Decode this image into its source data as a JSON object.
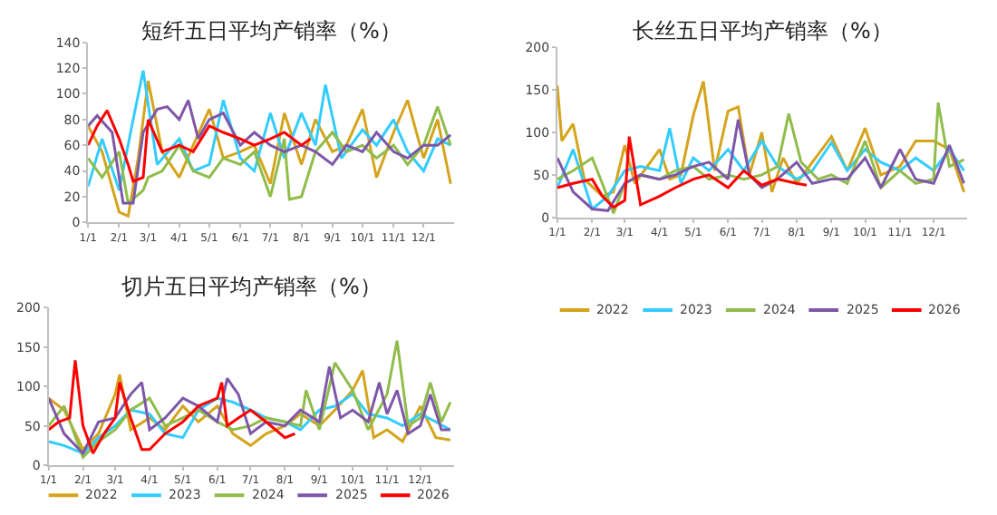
{
  "chart_data": [
    {
      "type": "line",
      "title": "短纤五日平均产销率（%）",
      "xlim": [
        "--01-01",
        "--12-31"
      ],
      "xticks": [
        {
          "value": "--01-01",
          "label": "1/1"
        },
        {
          "value": "--02-01",
          "label": "2/1"
        },
        {
          "value": "--03-01",
          "label": "3/1"
        },
        {
          "value": "--04-01",
          "label": "4/1"
        },
        {
          "value": "--05-01",
          "label": "5/1"
        },
        {
          "value": "--06-01",
          "label": "6/1"
        },
        {
          "value": "--07-01",
          "label": "7/1"
        },
        {
          "value": "--08-01",
          "label": "8/1"
        },
        {
          "value": "--09-01",
          "label": "9/1"
        },
        {
          "value": "--10-01",
          "label": "10/1"
        },
        {
          "value": "--11-01",
          "label": "11/1"
        },
        {
          "value": "--12-01",
          "label": "12/1"
        }
      ],
      "ylim": [
        0,
        140
      ],
      "yticks": [
        0,
        20,
        40,
        60,
        80,
        100,
        120,
        140
      ],
      "legend": false,
      "series": [
        {
          "color": "#d4a41c",
          "x": [
            "--01-01",
            "--01-15",
            "--02-01",
            "--02-10",
            "--02-20",
            "--03-01",
            "--03-15",
            "--04-01",
            "--04-15",
            "--05-01",
            "--05-15",
            "--06-01",
            "--06-15",
            "--07-01",
            "--07-15",
            "--08-01",
            "--08-15",
            "--09-01",
            "--09-15",
            "--10-01",
            "--10-15",
            "--11-01",
            "--11-15",
            "--12-01",
            "--12-15",
            "--12-28"
          ],
          "values": [
            75,
            55,
            8,
            5,
            50,
            110,
            55,
            35,
            60,
            88,
            50,
            55,
            60,
            30,
            85,
            45,
            80,
            55,
            60,
            88,
            35,
            70,
            95,
            50,
            80,
            30
          ]
        },
        {
          "color": "#33ccff",
          "x": [
            "--01-01",
            "--01-15",
            "--02-01",
            "--02-15",
            "--02-25",
            "--03-10",
            "--04-01",
            "--04-15",
            "--05-01",
            "--05-15",
            "--06-01",
            "--06-15",
            "--07-01",
            "--07-15",
            "--08-01",
            "--08-15",
            "--08-25",
            "--09-10",
            "--10-01",
            "--10-15",
            "--11-01",
            "--11-15",
            "--12-01",
            "--12-15",
            "--12-28"
          ],
          "values": [
            28,
            65,
            25,
            80,
            118,
            45,
            65,
            40,
            45,
            95,
            50,
            40,
            85,
            50,
            85,
            60,
            107,
            50,
            72,
            60,
            80,
            55,
            40,
            65,
            60
          ]
        },
        {
          "color": "#8fbc4a",
          "x": [
            "--01-01",
            "--01-15",
            "--02-01",
            "--02-10",
            "--02-25",
            "--03-01",
            "--03-15",
            "--04-01",
            "--04-15",
            "--05-01",
            "--05-15",
            "--06-01",
            "--06-15",
            "--07-01",
            "--07-15",
            "--07-20",
            "--08-01",
            "--08-15",
            "--09-01",
            "--09-15",
            "--10-01",
            "--10-15",
            "--11-01",
            "--11-15",
            "--12-01",
            "--12-15",
            "--12-28"
          ],
          "values": [
            50,
            35,
            55,
            15,
            25,
            35,
            40,
            60,
            40,
            35,
            50,
            45,
            55,
            20,
            65,
            18,
            20,
            55,
            70,
            55,
            60,
            50,
            60,
            45,
            60,
            90,
            60
          ]
        },
        {
          "color": "#7e57a8",
          "x": [
            "--01-01",
            "--01-10",
            "--01-25",
            "--02-05",
            "--02-15",
            "--02-25",
            "--03-10",
            "--03-20",
            "--04-01",
            "--04-10",
            "--04-20",
            "--05-01",
            "--05-15",
            "--06-01",
            "--06-15",
            "--07-01",
            "--07-15",
            "--08-01",
            "--08-15",
            "--09-01",
            "--09-15",
            "--10-01",
            "--10-15",
            "--11-01",
            "--11-15",
            "--12-01",
            "--12-15",
            "--12-28"
          ],
          "values": [
            75,
            83,
            70,
            15,
            15,
            70,
            88,
            90,
            80,
            95,
            65,
            80,
            85,
            60,
            70,
            60,
            55,
            60,
            55,
            45,
            60,
            55,
            70,
            55,
            50,
            60,
            60,
            68
          ]
        },
        {
          "color": "#ff0000",
          "x": [
            "--01-01",
            "--01-10",
            "--01-20",
            "--02-01",
            "--02-10",
            "--02-15",
            "--02-25",
            "--03-01",
            "--03-15",
            "--04-01",
            "--04-15",
            "--05-01",
            "--05-15",
            "--06-01",
            "--06-15",
            "--07-01",
            "--07-15",
            "--08-01",
            "--08-10"
          ],
          "values": [
            60,
            75,
            87,
            65,
            45,
            32,
            35,
            80,
            55,
            60,
            55,
            75,
            70,
            65,
            60,
            65,
            70,
            60,
            65
          ]
        }
      ]
    },
    {
      "type": "line",
      "title": "长丝五日平均产销率（%）",
      "xlim": [
        "--01-01",
        "--12-31"
      ],
      "xticks": [
        {
          "value": "--01-01",
          "label": "1/1"
        },
        {
          "value": "--02-01",
          "label": "2/1"
        },
        {
          "value": "--03-01",
          "label": "3/1"
        },
        {
          "value": "--04-01",
          "label": "4/1"
        },
        {
          "value": "--05-01",
          "label": "5/1"
        },
        {
          "value": "--06-01",
          "label": "6/1"
        },
        {
          "value": "--07-01",
          "label": "7/1"
        },
        {
          "value": "--08-01",
          "label": "8/1"
        },
        {
          "value": "--09-01",
          "label": "9/1"
        },
        {
          "value": "--10-01",
          "label": "10/1"
        },
        {
          "value": "--11-01",
          "label": "11/1"
        },
        {
          "value": "--12-01",
          "label": "12/1"
        }
      ],
      "ylim": [
        0,
        200
      ],
      "yticks": [
        0,
        50,
        100,
        150,
        200
      ],
      "legend": "bottom",
      "series": [
        {
          "name": "2022",
          "color": "#d4a41c",
          "x": [
            "--01-01",
            "--01-05",
            "--01-15",
            "--01-25",
            "--02-10",
            "--02-20",
            "--03-01",
            "--03-10",
            "--04-01",
            "--04-10",
            "--04-20",
            "--05-01",
            "--05-10",
            "--05-20",
            "--06-01",
            "--06-10",
            "--06-20",
            "--07-01",
            "--07-10",
            "--07-20",
            "--08-01",
            "--08-15",
            "--09-01",
            "--09-15",
            "--10-01",
            "--10-15",
            "--11-01",
            "--11-15",
            "--12-01",
            "--12-15",
            "--12-28"
          ],
          "values": [
            155,
            90,
            110,
            45,
            25,
            30,
            85,
            40,
            80,
            45,
            50,
            120,
            160,
            55,
            125,
            130,
            50,
            100,
            30,
            70,
            40,
            65,
            95,
            55,
            105,
            50,
            60,
            90,
            90,
            80,
            30
          ]
        },
        {
          "name": "2023",
          "color": "#33ccff",
          "x": [
            "--01-01",
            "--01-15",
            "--02-01",
            "--02-15",
            "--03-01",
            "--03-15",
            "--04-01",
            "--04-10",
            "--04-20",
            "--05-01",
            "--05-15",
            "--06-01",
            "--06-15",
            "--07-01",
            "--07-15",
            "--08-01",
            "--08-15",
            "--09-01",
            "--09-15",
            "--10-01",
            "--10-15",
            "--11-01",
            "--11-15",
            "--12-01",
            "--12-15",
            "--12-28"
          ],
          "values": [
            35,
            80,
            10,
            25,
            55,
            60,
            55,
            105,
            40,
            70,
            55,
            80,
            55,
            90,
            60,
            45,
            55,
            88,
            55,
            80,
            65,
            55,
            70,
            55,
            80,
            55
          ]
        },
        {
          "name": "2024",
          "color": "#8fbc4a",
          "x": [
            "--01-01",
            "--01-15",
            "--02-01",
            "--02-10",
            "--02-20",
            "--03-01",
            "--03-15",
            "--04-01",
            "--04-15",
            "--05-01",
            "--05-15",
            "--06-01",
            "--06-15",
            "--07-01",
            "--07-15",
            "--07-25",
            "--08-05",
            "--08-20",
            "--09-01",
            "--09-15",
            "--10-01",
            "--10-15",
            "--11-01",
            "--11-15",
            "--12-01",
            "--12-05",
            "--12-15",
            "--12-28"
          ],
          "values": [
            45,
            55,
            70,
            40,
            5,
            40,
            50,
            45,
            55,
            60,
            45,
            50,
            45,
            50,
            60,
            122,
            65,
            45,
            50,
            40,
            90,
            35,
            55,
            40,
            45,
            135,
            60,
            68
          ]
        },
        {
          "name": "2025",
          "color": "#7e57a8",
          "x": [
            "--01-01",
            "--01-15",
            "--02-01",
            "--02-15",
            "--03-01",
            "--03-15",
            "--04-01",
            "--04-15",
            "--05-01",
            "--05-15",
            "--06-01",
            "--06-10",
            "--06-20",
            "--07-01",
            "--07-15",
            "--08-01",
            "--08-15",
            "--09-01",
            "--09-15",
            "--10-01",
            "--10-15",
            "--11-01",
            "--11-15",
            "--12-01",
            "--12-15",
            "--12-28"
          ],
          "values": [
            70,
            30,
            10,
            8,
            40,
            50,
            45,
            50,
            60,
            65,
            45,
            115,
            50,
            35,
            45,
            65,
            40,
            45,
            45,
            70,
            35,
            80,
            45,
            40,
            85,
            40
          ]
        },
        {
          "name": "2026",
          "color": "#ff0000",
          "x": [
            "--01-01",
            "--01-15",
            "--02-01",
            "--02-10",
            "--02-20",
            "--03-01",
            "--03-05",
            "--03-15",
            "--04-01",
            "--04-15",
            "--05-01",
            "--05-15",
            "--06-01",
            "--06-15",
            "--07-01",
            "--07-15",
            "--08-01",
            "--08-10"
          ],
          "values": [
            35,
            40,
            45,
            25,
            12,
            20,
            95,
            15,
            25,
            35,
            45,
            50,
            35,
            55,
            38,
            45,
            40,
            38
          ]
        }
      ]
    },
    {
      "type": "line",
      "title": "切片五日平均产销率（%）",
      "xlim": [
        "--01-01",
        "--12-31"
      ],
      "xticks": [
        {
          "value": "--01-01",
          "label": "1/1"
        },
        {
          "value": "--02-01",
          "label": "2/1"
        },
        {
          "value": "--03-01",
          "label": "3/1"
        },
        {
          "value": "--04-01",
          "label": "4/1"
        },
        {
          "value": "--05-01",
          "label": "5/1"
        },
        {
          "value": "--06-01",
          "label": "6/1"
        },
        {
          "value": "--07-01",
          "label": "7/1"
        },
        {
          "value": "--08-01",
          "label": "8/1"
        },
        {
          "value": "--09-01",
          "label": "9/1"
        },
        {
          "value": "--10-01",
          "label": "10/1"
        },
        {
          "value": "--11-01",
          "label": "11/1"
        },
        {
          "value": "--12-01",
          "label": "12/1"
        }
      ],
      "ylim": [
        0,
        200
      ],
      "yticks": [
        0,
        50,
        100,
        150,
        200
      ],
      "legend": "bottom",
      "series": [
        {
          "name": "2022",
          "color": "#d4a41c",
          "x": [
            "--01-01",
            "--01-15",
            "--02-01",
            "--02-15",
            "--03-01",
            "--03-05",
            "--03-15",
            "--04-01",
            "--04-15",
            "--05-01",
            "--05-15",
            "--06-01",
            "--06-15",
            "--07-01",
            "--07-15",
            "--08-01",
            "--08-15",
            "--09-01",
            "--09-15",
            "--10-01",
            "--10-10",
            "--10-20",
            "--11-01",
            "--11-15",
            "--12-01",
            "--12-15",
            "--12-28"
          ],
          "values": [
            85,
            70,
            20,
            40,
            90,
            115,
            45,
            60,
            45,
            75,
            55,
            75,
            40,
            25,
            40,
            50,
            65,
            50,
            70,
            95,
            120,
            35,
            45,
            30,
            75,
            35,
            32
          ]
        },
        {
          "name": "2023",
          "color": "#33ccff",
          "x": [
            "--01-01",
            "--01-15",
            "--02-01",
            "--02-15",
            "--03-01",
            "--03-15",
            "--04-01",
            "--04-15",
            "--05-01",
            "--05-15",
            "--06-01",
            "--06-15",
            "--07-01",
            "--07-15",
            "--08-01",
            "--08-15",
            "--09-01",
            "--09-15",
            "--10-01",
            "--10-15",
            "--11-01",
            "--11-15",
            "--12-01",
            "--12-15",
            "--12-28"
          ],
          "values": [
            30,
            25,
            15,
            35,
            50,
            70,
            65,
            40,
            35,
            70,
            85,
            80,
            70,
            60,
            55,
            45,
            70,
            75,
            90,
            65,
            60,
            50,
            65,
            55,
            45
          ]
        },
        {
          "name": "2024",
          "color": "#8fbc4a",
          "x": [
            "--01-01",
            "--01-15",
            "--02-01",
            "--02-15",
            "--03-01",
            "--03-15",
            "--04-01",
            "--04-15",
            "--05-01",
            "--05-15",
            "--06-01",
            "--06-15",
            "--07-01",
            "--07-15",
            "--08-01",
            "--08-15",
            "--08-20",
            "--09-01",
            "--09-15",
            "--10-01",
            "--10-15",
            "--11-01",
            "--11-10",
            "--11-20",
            "--12-01",
            "--12-10",
            "--12-20",
            "--12-28"
          ],
          "values": [
            50,
            75,
            10,
            30,
            45,
            70,
            85,
            50,
            60,
            70,
            55,
            45,
            50,
            60,
            55,
            50,
            95,
            45,
            130,
            95,
            45,
            90,
            158,
            50,
            60,
            105,
            55,
            80
          ]
        },
        {
          "name": "2025",
          "color": "#7e57a8",
          "x": [
            "--01-01",
            "--01-15",
            "--02-01",
            "--02-15",
            "--03-01",
            "--03-15",
            "--03-25",
            "--04-01",
            "--04-15",
            "--05-01",
            "--05-15",
            "--06-01",
            "--06-10",
            "--06-20",
            "--07-01",
            "--07-15",
            "--08-01",
            "--08-15",
            "--09-01",
            "--09-10",
            "--09-20",
            "--10-01",
            "--10-15",
            "--10-25",
            "--11-01",
            "--11-10",
            "--11-20",
            "--12-01",
            "--12-10",
            "--12-20",
            "--12-28"
          ],
          "values": [
            85,
            40,
            15,
            55,
            60,
            90,
            105,
            45,
            60,
            85,
            75,
            55,
            110,
            90,
            40,
            55,
            50,
            70,
            55,
            125,
            60,
            70,
            55,
            105,
            65,
            95,
            40,
            50,
            90,
            45,
            45
          ]
        },
        {
          "name": "2026",
          "color": "#ff0000",
          "x": [
            "--01-01",
            "--01-10",
            "--01-20",
            "--01-25",
            "--02-01",
            "--02-10",
            "--02-20",
            "--03-01",
            "--03-05",
            "--03-15",
            "--03-25",
            "--04-01",
            "--04-15",
            "--05-01",
            "--05-15",
            "--06-01",
            "--06-05",
            "--06-10",
            "--06-20",
            "--07-01",
            "--07-15",
            "--08-01",
            "--08-10"
          ],
          "values": [
            45,
            55,
            60,
            133,
            50,
            15,
            40,
            60,
            105,
            60,
            20,
            20,
            40,
            55,
            75,
            85,
            105,
            50,
            60,
            70,
            55,
            35,
            40
          ]
        }
      ]
    }
  ]
}
